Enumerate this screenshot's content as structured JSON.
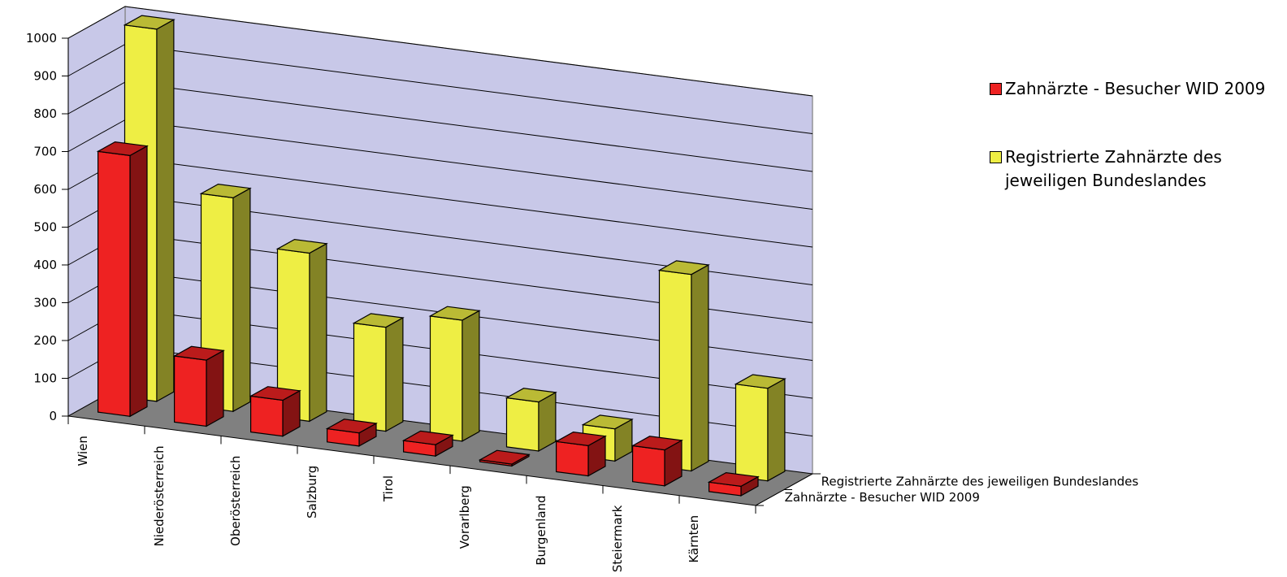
{
  "chart_data": {
    "type": "bar",
    "style": "3d-clustered-depth",
    "categories": [
      "Wien",
      "Niederösterreich",
      "Oberösterreich",
      "Salzburg",
      "Tirol",
      "Vorarlberg",
      "Burgenland",
      "Steiermark",
      "Kärnten"
    ],
    "series": [
      {
        "name": "Zahnärzte - Besucher WID 2009",
        "color": "#ee2222",
        "values": [
          690,
          175,
          95,
          35,
          30,
          5,
          80,
          95,
          25
        ]
      },
      {
        "name": "Registrierte Zahnärzte des jeweiligen Bundeslandes",
        "color": "#eeee44",
        "values": [
          985,
          565,
          445,
          275,
          320,
          130,
          85,
          520,
          245
        ]
      }
    ],
    "depth_labels": [
      "Registrierte Zahnärzte des jeweiligen Bundeslandes",
      "Zahnärzte - Besucher WID 2009"
    ],
    "ylim": [
      0,
      1000
    ],
    "yticks": [
      0,
      100,
      200,
      300,
      400,
      500,
      600,
      700,
      800,
      900,
      1000
    ],
    "grid": true,
    "legend_position": "right",
    "wall_color": "#c8c8e8",
    "floor_color": "#808080"
  }
}
